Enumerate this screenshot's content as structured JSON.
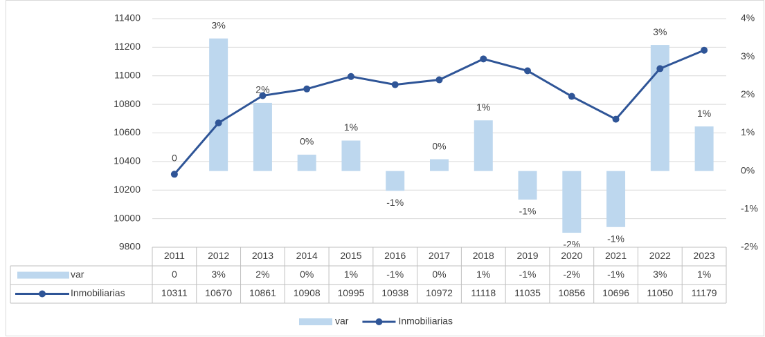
{
  "chart_data": {
    "type": "combo",
    "categories": [
      "2011",
      "2012",
      "2013",
      "2014",
      "2015",
      "2016",
      "2017",
      "2018",
      "2019",
      "2020",
      "2021",
      "2022",
      "2023"
    ],
    "series": [
      {
        "name": "var",
        "type": "bar",
        "axis": "y2",
        "color": "#bdd7ee",
        "values": [
          0,
          3.48,
          1.79,
          0.43,
          0.8,
          -0.52,
          0.31,
          1.33,
          -0.75,
          -1.62,
          -1.47,
          3.31,
          1.17
        ],
        "value_labels": [
          "0",
          "3%",
          "2%",
          "0%",
          "1%",
          "-1%",
          "0%",
          "1%",
          "-1%",
          "-2%",
          "-1%",
          "3%",
          "1%"
        ]
      },
      {
        "name": "Inmobiliarias",
        "type": "line",
        "color": "#2f5597",
        "values": [
          10311,
          10670,
          10861,
          10908,
          10995,
          10938,
          10972,
          11118,
          11035,
          10856,
          10696,
          11050,
          11179
        ]
      }
    ],
    "ylim": [
      9800,
      11400
    ],
    "yticks": [
      9800,
      10000,
      10200,
      10400,
      10600,
      10800,
      11000,
      11200,
      11400
    ],
    "y2lim": [
      -2,
      4
    ],
    "y2ticks": [
      {
        "value": -2,
        "label": "-2%"
      },
      {
        "value": -1,
        "label": "-1%"
      },
      {
        "value": 0,
        "label": "0%"
      },
      {
        "value": 1,
        "label": "1%"
      },
      {
        "value": 2,
        "label": "2%"
      },
      {
        "value": 3,
        "label": "3%"
      },
      {
        "value": 4,
        "label": "4%"
      }
    ],
    "grid": true,
    "legend": "bottom"
  }
}
